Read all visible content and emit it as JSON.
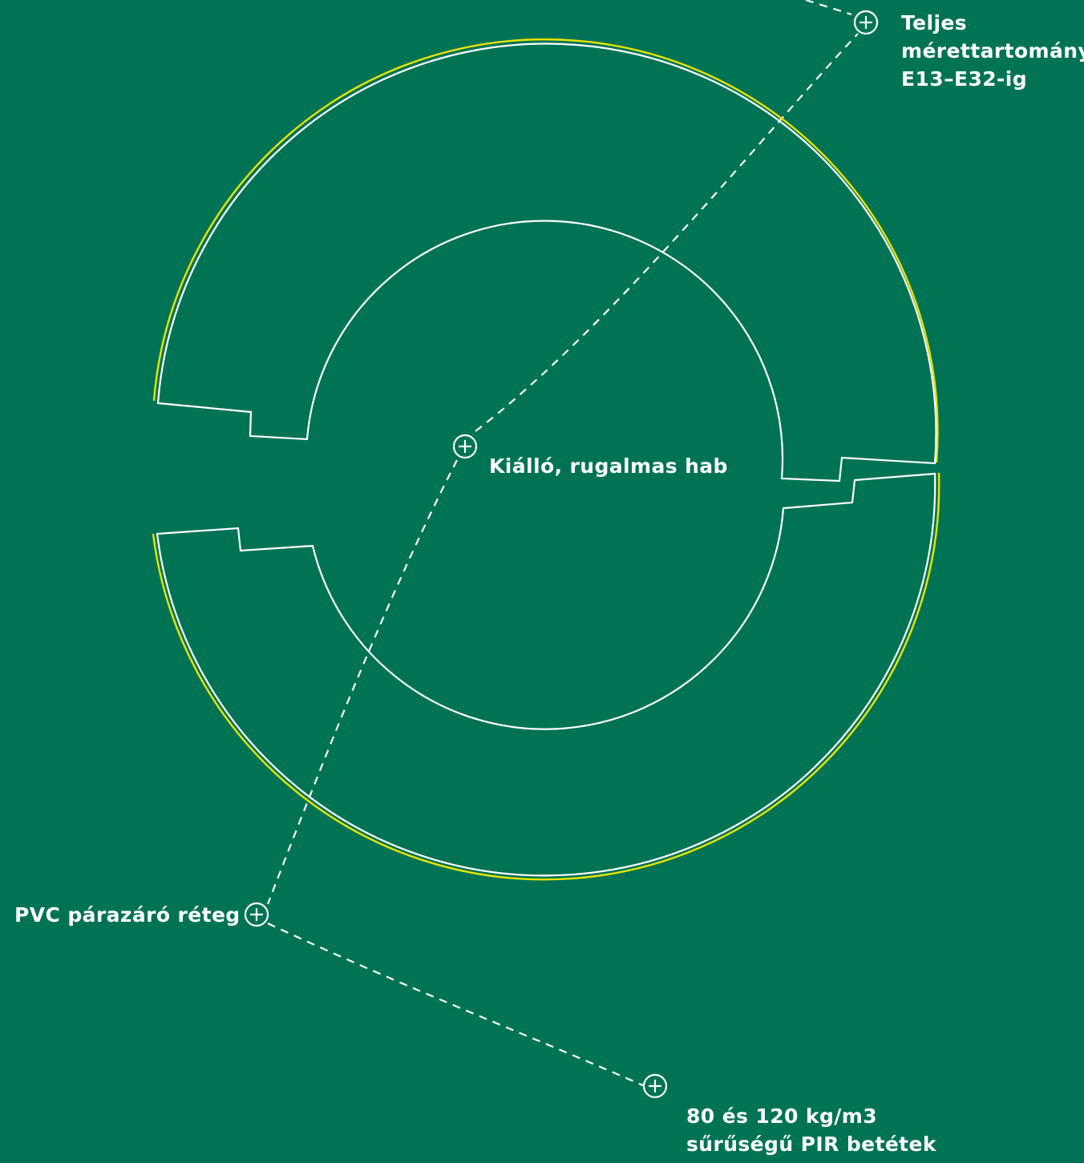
{
  "colors": {
    "background": "#007355",
    "outline": "#ffffff",
    "jacket": "#e8e400",
    "leader": "#ffffff"
  },
  "callouts": {
    "sizes": {
      "icon": "plus-circle-icon",
      "lines": [
        "Teljes",
        "mérettartomány",
        "E13–E32-ig"
      ]
    },
    "foam": {
      "icon": "plus-circle-icon",
      "lines": [
        "Kiálló, rugalmas hab"
      ]
    },
    "pvc": {
      "icon": "plus-circle-icon",
      "lines": [
        "PVC párazáró réteg"
      ]
    },
    "pir": {
      "icon": "plus-circle-icon",
      "lines": [
        "80 és 120 kg/m3",
        "sűrűségű PIR betétek"
      ]
    }
  }
}
